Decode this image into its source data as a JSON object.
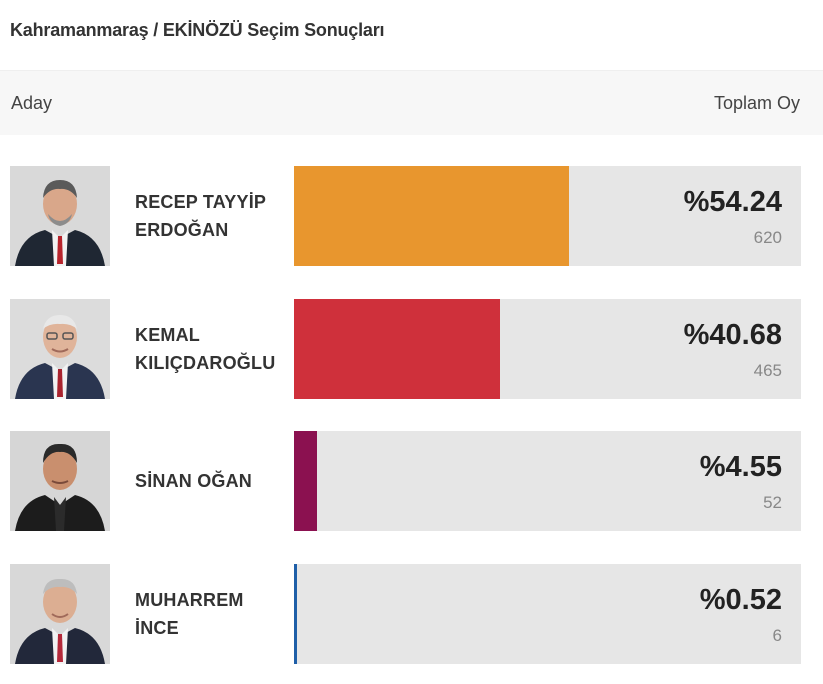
{
  "page": {
    "title": "Kahramanmaraş / EKİNÖZÜ Seçim Sonuçları"
  },
  "header": {
    "candidate_col": "Aday",
    "total_col": "Toplam Oy"
  },
  "candidates": [
    {
      "name_line1": "RECEP TAYYİP",
      "name_line2": "ERDOĞAN",
      "percent": "%54.24",
      "votes": "620",
      "share": 0.5424,
      "color": "#e8962e",
      "photo_bg": "#d9d9d9",
      "suit": "#1f2733",
      "tie": "#b8242c"
    },
    {
      "name_line1": "KEMAL",
      "name_line2": "KILIÇDAROĞLU",
      "percent": "%40.68",
      "votes": "465",
      "share": 0.4068,
      "color": "#cf303b",
      "photo_bg": "#dcdcdc",
      "suit": "#2a3550",
      "tie": "#a9232e"
    },
    {
      "name_line1": "SİNAN OĞAN",
      "name_line2": "",
      "percent": "%4.55",
      "votes": "52",
      "share": 0.0455,
      "color": "#8b1150",
      "photo_bg": "#d6d6d6",
      "suit": "#1c1c1c",
      "tie": "#1c1c1c"
    },
    {
      "name_line1": "MUHARREM",
      "name_line2": "İNCE",
      "percent": "%0.52",
      "votes": "6",
      "share": 0.0052,
      "color": "#1f5fa8",
      "photo_bg": "#d8d8d8",
      "suit": "#22283a",
      "tie": "#b5293a"
    }
  ]
}
